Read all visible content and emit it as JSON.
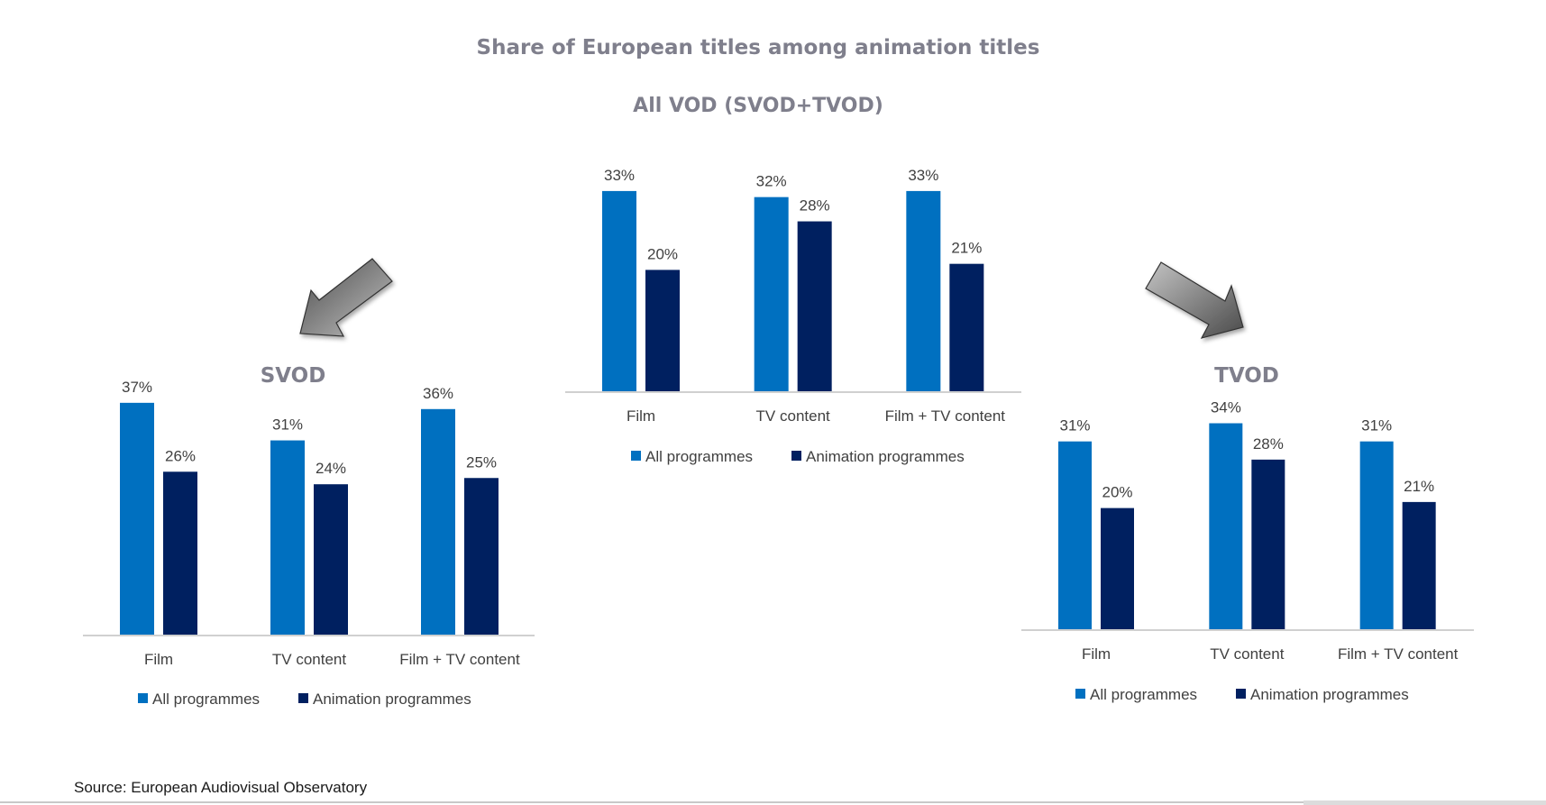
{
  "title": "Share of European titles among animation titles",
  "source": "Source: European Audiovisual Observatory",
  "colors": {
    "all_programmes": "#0070C0",
    "animation_programmes": "#002060",
    "title": "#7f7f8c",
    "text": "#404040",
    "axis": "#d0d0d0",
    "arrow": "#6d6d6d"
  },
  "arrows": [
    {
      "name": "svod-arrow-icon",
      "direction": "down-left"
    },
    {
      "name": "tvod-arrow-icon",
      "direction": "down-right"
    }
  ],
  "chart_data": [
    {
      "id": "all-vod",
      "type": "bar",
      "title": "All VOD (SVOD+TVOD)",
      "categories": [
        "Film",
        "TV content",
        "Film + TV content"
      ],
      "series": [
        {
          "name": "All programmes",
          "values": [
            33,
            32,
            33
          ]
        },
        {
          "name": "Animation programmes",
          "values": [
            20,
            28,
            21
          ]
        }
      ],
      "value_format": "percent",
      "ylim": [
        0,
        35
      ],
      "grid": false,
      "legend": "bottom",
      "xlabel": "",
      "ylabel": ""
    },
    {
      "id": "svod",
      "type": "bar",
      "title": "SVOD",
      "categories": [
        "Film",
        "TV content",
        "Film + TV content"
      ],
      "series": [
        {
          "name": "All programmes",
          "values": [
            37,
            31,
            36
          ]
        },
        {
          "name": "Animation programmes",
          "values": [
            26,
            24,
            25
          ]
        }
      ],
      "value_format": "percent",
      "ylim": [
        0,
        37
      ],
      "grid": false,
      "legend": "bottom",
      "xlabel": "",
      "ylabel": ""
    },
    {
      "id": "tvod",
      "type": "bar",
      "title": "TVOD",
      "categories": [
        "Film",
        "TV content",
        "Film + TV content"
      ],
      "series": [
        {
          "name": "All programmes",
          "values": [
            31,
            34,
            31
          ]
        },
        {
          "name": "Animation programmes",
          "values": [
            20,
            28,
            21
          ]
        }
      ],
      "value_format": "percent",
      "ylim": [
        0,
        35
      ],
      "grid": false,
      "legend": "bottom",
      "xlabel": "",
      "ylabel": ""
    }
  ]
}
